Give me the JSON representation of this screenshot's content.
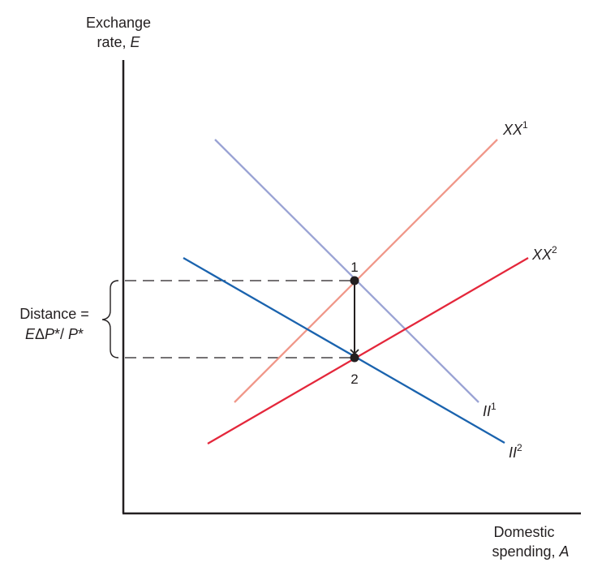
{
  "axes": {
    "y_label_line1": "Exchange",
    "y_label_line2": "rate, ",
    "y_label_var": "E",
    "x_label_line1": "Domestic",
    "x_label_line2": "spending, ",
    "x_label_var": "A"
  },
  "curves": {
    "xx1": {
      "name": "XX",
      "sup": "1",
      "color": "#f0988a"
    },
    "xx2": {
      "name": "XX",
      "sup": "2",
      "color": "#e4273b"
    },
    "ii1": {
      "name": "II",
      "sup": "1",
      "color": "#9aa3d4"
    },
    "ii2": {
      "name": "II",
      "sup": "2",
      "color": "#1a63ae"
    }
  },
  "points": {
    "p1": "1",
    "p2": "2"
  },
  "bracket": {
    "line1": "Distance =",
    "line2_a": "E",
    "line2_b": "Δ",
    "line2_c": "P",
    "line2_d": "*/ ",
    "line2_e": "P",
    "line2_f": "*"
  },
  "colors": {
    "axis": "#231f20",
    "dashed": "#231f20",
    "point": "#231f20"
  }
}
